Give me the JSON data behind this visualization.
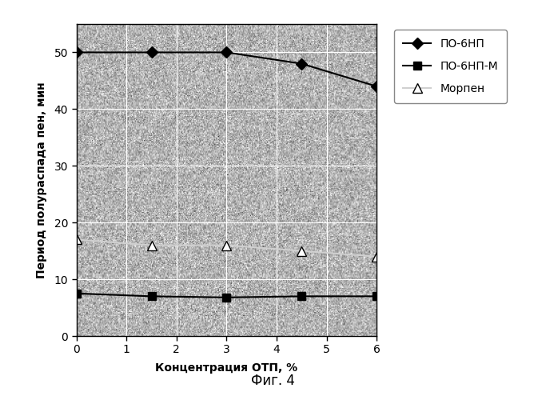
{
  "series": [
    {
      "label": "ПО-6НП",
      "x": [
        0,
        1.5,
        3,
        4.5,
        6
      ],
      "y": [
        50,
        50,
        50,
        48,
        44
      ],
      "color": "#000000",
      "marker": "D",
      "markersize": 7,
      "markerfacecolor": "#000000",
      "linewidth": 1.5,
      "zorder": 3
    },
    {
      "label": "ПО-6НП-М",
      "x": [
        0,
        1.5,
        3,
        4.5,
        6
      ],
      "y": [
        7.5,
        7.0,
        6.8,
        7.0,
        7.0
      ],
      "color": "#000000",
      "marker": "s",
      "markersize": 7,
      "markerfacecolor": "#000000",
      "linewidth": 1.5,
      "zorder": 3
    },
    {
      "label": "Морпен",
      "x": [
        0,
        1.5,
        3,
        4.5,
        6
      ],
      "y": [
        17,
        16,
        16,
        15,
        14
      ],
      "color": "#d0d0d0",
      "marker": "^",
      "markersize": 8,
      "markerfacecolor": "#ffffff",
      "linewidth": 1.5,
      "zorder": 3
    }
  ],
  "xlabel": "Концентрация ОТП, %",
  "ylabel": "Период полураспада пен, мин",
  "xlim": [
    0,
    6
  ],
  "ylim": [
    0,
    55
  ],
  "yticks": [
    0,
    10,
    20,
    30,
    40,
    50
  ],
  "xticks": [
    0,
    1,
    2,
    3,
    4,
    5,
    6
  ],
  "noise_mean": 180,
  "noise_std": 30,
  "figure_caption": "Фиг. 4",
  "grid_color": "#ffffff",
  "grid_linewidth": 0.8
}
